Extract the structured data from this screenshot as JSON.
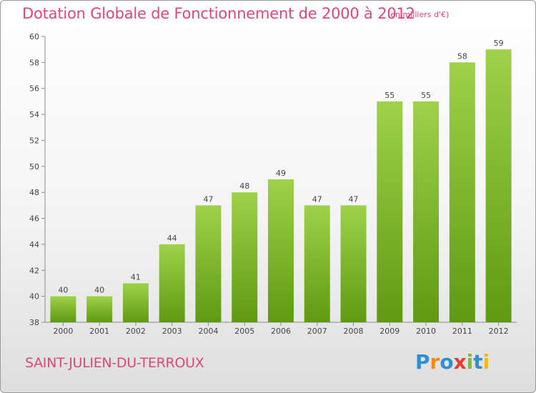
{
  "header": {
    "title": "Dotation Globale de Fonctionnement de 2000 à 2012",
    "subtitle": "(en milliers d'€)"
  },
  "footer": {
    "commune": "SAINT-JULIEN-DU-TERROUX",
    "logo_text": "Proxiti",
    "logo_letters": [
      {
        "ch": "P",
        "color": "#2f8fd0"
      },
      {
        "ch": "r",
        "color": "#f08a1c"
      },
      {
        "ch": "o",
        "color": "#2f8fd0"
      },
      {
        "ch": "x",
        "color": "#e63b2e"
      },
      {
        "ch": "i",
        "color": "#7cbf2a"
      },
      {
        "ch": "t",
        "color": "#2f8fd0"
      },
      {
        "ch": "i",
        "color": "#f0b81c"
      }
    ]
  },
  "colors": {
    "title": "#e0457b",
    "bar_top": "#9fd14a",
    "bar_bottom": "#5f9a12"
  },
  "chart_data": {
    "type": "bar",
    "title": "Dotation Globale de Fonctionnement de 2000 à 2012",
    "subtitle": "(en milliers d'€)",
    "categories": [
      "2000",
      "2001",
      "2002",
      "2003",
      "2004",
      "2005",
      "2006",
      "2007",
      "2008",
      "2009",
      "2010",
      "2011",
      "2012"
    ],
    "values": [
      40,
      40,
      41,
      44,
      47,
      48,
      49,
      47,
      47,
      55,
      55,
      58,
      59
    ],
    "data_labels": [
      "40",
      "40",
      "41",
      "44",
      "47",
      "48",
      "49",
      "47",
      "47",
      "55",
      "55",
      "58",
      "59"
    ],
    "ylim": [
      38,
      60
    ],
    "yticks": [
      38,
      40,
      42,
      44,
      46,
      48,
      50,
      52,
      54,
      56,
      58,
      60
    ],
    "grid": false,
    "xlabel": "",
    "ylabel": ""
  }
}
